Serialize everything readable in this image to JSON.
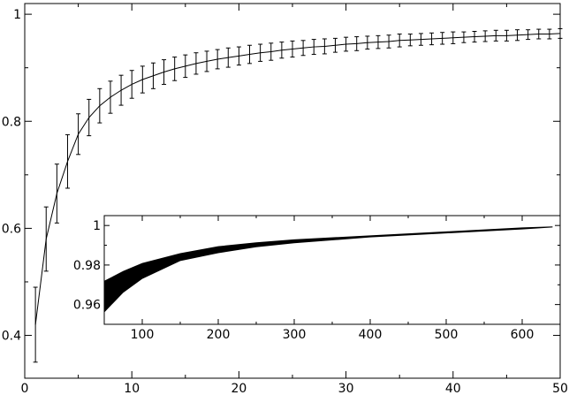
{
  "chart_data": [
    {
      "type": "line",
      "title": "",
      "xlabel": "",
      "ylabel": "",
      "xlim": [
        0,
        50
      ],
      "ylim": [
        0.32,
        1.02
      ],
      "grid": false,
      "x_ticks": [
        0,
        10,
        20,
        30,
        40,
        50
      ],
      "x_tick_labels": [
        "0",
        "10",
        "20",
        "30",
        "40",
        "50"
      ],
      "y_ticks": [
        0.4,
        0.6,
        0.8,
        1.0
      ],
      "y_tick_labels": [
        "0.4",
        "0.6",
        "0.8",
        "1"
      ],
      "series": [
        {
          "x": [
            1,
            2,
            3,
            4,
            5,
            6,
            7,
            8,
            9,
            10,
            11,
            12,
            13,
            14,
            15,
            16,
            17,
            18,
            19,
            20,
            21,
            22,
            23,
            24,
            25,
            26,
            27,
            28,
            29,
            30,
            31,
            32,
            33,
            34,
            35,
            36,
            37,
            38,
            39,
            40,
            41,
            42,
            43,
            44,
            45,
            46,
            47,
            48,
            49,
            50
          ],
          "y": [
            0.42,
            0.58,
            0.665,
            0.725,
            0.776,
            0.807,
            0.829,
            0.845,
            0.858,
            0.869,
            0.878,
            0.885,
            0.892,
            0.898,
            0.903,
            0.908,
            0.912,
            0.916,
            0.919,
            0.922,
            0.925,
            0.928,
            0.93,
            0.933,
            0.935,
            0.937,
            0.939,
            0.94,
            0.942,
            0.944,
            0.945,
            0.947,
            0.948,
            0.949,
            0.951,
            0.952,
            0.953,
            0.954,
            0.955,
            0.956,
            0.957,
            0.958,
            0.959,
            0.96,
            0.96,
            0.961,
            0.962,
            0.963,
            0.963,
            0.964
          ],
          "err": [
            0.07,
            0.06,
            0.055,
            0.05,
            0.038,
            0.034,
            0.032,
            0.03,
            0.028,
            0.026,
            0.025,
            0.024,
            0.023,
            0.022,
            0.021,
            0.02,
            0.019,
            0.018,
            0.018,
            0.017,
            0.017,
            0.016,
            0.016,
            0.015,
            0.015,
            0.014,
            0.014,
            0.014,
            0.013,
            0.013,
            0.013,
            0.012,
            0.012,
            0.012,
            0.012,
            0.011,
            0.011,
            0.011,
            0.011,
            0.011,
            0.01,
            0.01,
            0.01,
            0.01,
            0.01,
            0.01,
            0.009,
            0.009,
            0.009,
            0.009
          ]
        }
      ]
    },
    {
      "type": "area",
      "title": "",
      "xlabel": "",
      "ylabel": "",
      "xlim": [
        50,
        650
      ],
      "ylim": [
        0.95,
        1.005
      ],
      "grid": false,
      "x_ticks": [
        100,
        200,
        300,
        400,
        500,
        600
      ],
      "x_tick_labels": [
        "100",
        "200",
        "300",
        "400",
        "500",
        "600"
      ],
      "y_ticks": [
        0.96,
        0.98,
        1.0
      ],
      "y_tick_labels": [
        "0.96",
        "0.98",
        "1"
      ],
      "series": [
        {
          "x": [
            50,
            60,
            75,
            100,
            150,
            200,
            250,
            300,
            400,
            500,
            600,
            640
          ],
          "y_lower": [
            0.956,
            0.96,
            0.966,
            0.973,
            0.982,
            0.986,
            0.989,
            0.991,
            0.994,
            0.996,
            0.998,
            0.999
          ],
          "y_upper": [
            0.972,
            0.974,
            0.977,
            0.981,
            0.986,
            0.9895,
            0.9915,
            0.993,
            0.995,
            0.997,
            0.999,
            0.9995
          ]
        }
      ]
    }
  ]
}
